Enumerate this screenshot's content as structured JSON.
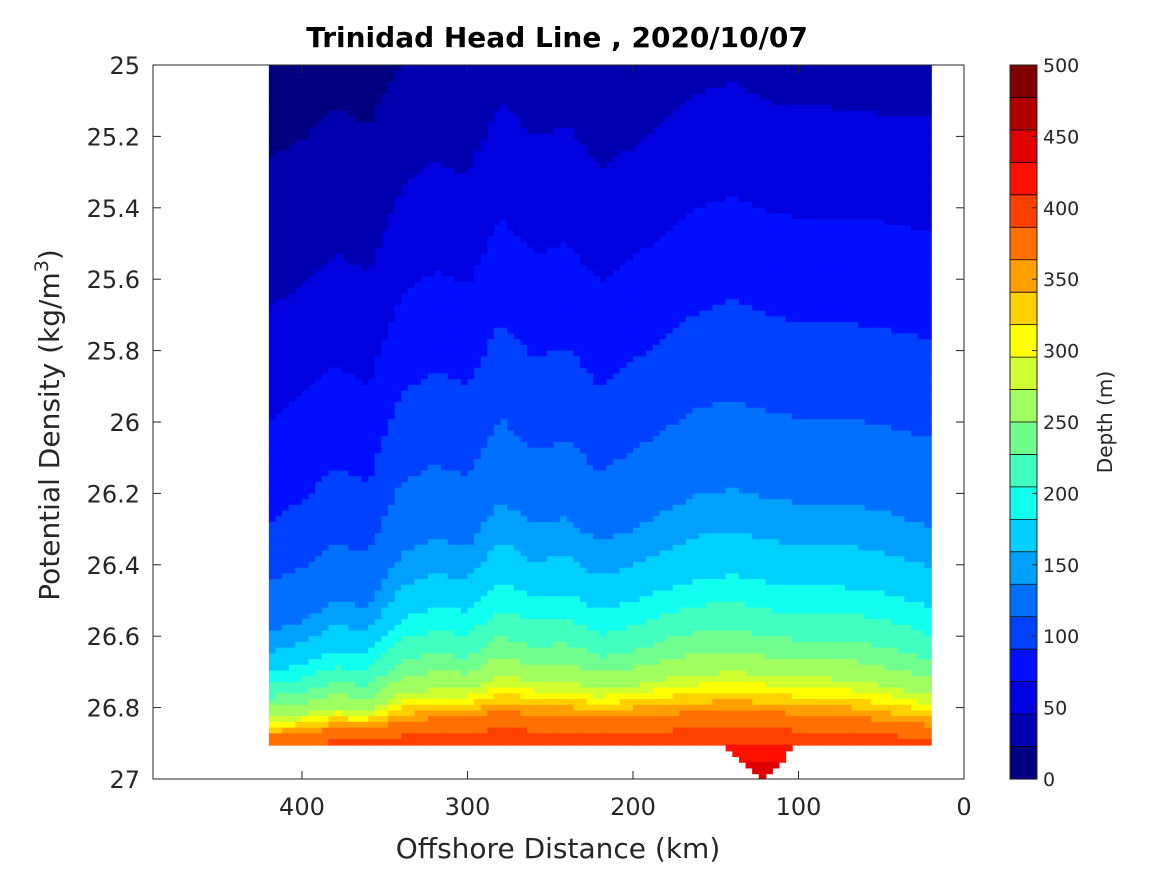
{
  "chart_data": {
    "type": "heatmap",
    "subtype": "filled-contour",
    "title": "Trinidad Head Line , 2020/10/07",
    "xlabel": "Offshore Distance (km)",
    "ylabel_main": "Potential Density (kg/m",
    "ylabel_sup": "3",
    "ylabel_close": ")",
    "colorbar_label": "Depth (m)",
    "xlim": [
      490,
      0
    ],
    "ylim": [
      27,
      25
    ],
    "x_reversed": true,
    "y_reversed": true,
    "x_ticks": [
      400,
      300,
      200,
      100,
      0
    ],
    "x_tick_labels": [
      "400",
      "300",
      "200",
      "100",
      "0"
    ],
    "y_ticks": [
      25,
      25.2,
      25.4,
      25.6,
      25.8,
      26,
      26.2,
      26.4,
      26.6,
      26.8,
      27
    ],
    "y_tick_labels": [
      "25",
      "25.2",
      "25.4",
      "25.6",
      "25.8",
      "26",
      "26.2",
      "26.4",
      "26.6",
      "26.8",
      "27"
    ],
    "colorbar_ticks": [
      0,
      50,
      100,
      150,
      200,
      250,
      300,
      350,
      400,
      450,
      500
    ],
    "colorbar_tick_labels": [
      "0",
      "50",
      "100",
      "150",
      "200",
      "250",
      "300",
      "350",
      "400",
      "450",
      "500"
    ],
    "contour_step": 25,
    "colormap": "jet",
    "level_colors": [
      "#000080",
      "#0000B0",
      "#0000E0",
      "#0010FF",
      "#0040FF",
      "#0070FF",
      "#00A0FF",
      "#00D0FF",
      "#10FFEF",
      "#40FFBF",
      "#70FF8F",
      "#A0FF60",
      "#D0FF30",
      "#FFFF00",
      "#FFD000",
      "#FFA000",
      "#FF7000",
      "#FF4000",
      "#FF1000",
      "#E00000",
      "#B00000",
      "#800000"
    ],
    "grid": false,
    "legend": "none",
    "contour_boundaries": {
      "x": [
        420,
        400,
        380,
        360,
        340,
        320,
        300,
        280,
        260,
        240,
        220,
        200,
        180,
        160,
        140,
        120,
        100,
        80,
        60,
        40,
        20
      ],
      "depth_25": [
        25.26,
        25.21,
        25.12,
        25.17,
        25.0,
        25.0,
        25.0,
        25.0,
        25.0,
        25.0,
        25.0,
        25.0,
        25.0,
        25.0,
        25.0,
        25.0,
        25.0,
        25.0,
        25.0,
        25.0,
        25.0
      ],
      "depth_50": [
        25.68,
        25.62,
        25.53,
        25.58,
        25.34,
        25.27,
        25.31,
        25.1,
        25.2,
        25.17,
        25.29,
        25.23,
        25.16,
        25.08,
        25.05,
        25.1,
        25.12,
        25.12,
        25.13,
        25.15,
        25.15
      ],
      "depth_75": [
        26.0,
        25.92,
        25.84,
        25.9,
        25.64,
        25.58,
        25.62,
        25.43,
        25.53,
        25.5,
        25.61,
        25.54,
        25.47,
        25.4,
        25.37,
        25.41,
        25.43,
        25.43,
        25.43,
        25.45,
        25.47
      ],
      "depth_100": [
        26.28,
        26.22,
        26.13,
        26.17,
        25.92,
        25.86,
        25.9,
        25.72,
        25.82,
        25.79,
        25.9,
        25.83,
        25.76,
        25.69,
        25.66,
        25.7,
        25.72,
        25.72,
        25.73,
        25.75,
        25.77
      ],
      "depth_125": [
        26.45,
        26.41,
        26.34,
        26.37,
        26.17,
        26.12,
        26.15,
        25.99,
        26.08,
        26.05,
        26.14,
        26.08,
        26.02,
        25.96,
        25.94,
        25.97,
        25.99,
        25.99,
        26.0,
        26.02,
        26.05
      ],
      "depth_150": [
        26.59,
        26.56,
        26.5,
        26.52,
        26.37,
        26.33,
        26.35,
        26.22,
        26.29,
        26.27,
        26.34,
        26.3,
        26.25,
        26.2,
        26.19,
        26.21,
        26.23,
        26.23,
        26.24,
        26.26,
        26.3
      ],
      "depth_200": [
        26.7,
        26.68,
        26.64,
        26.65,
        26.55,
        26.52,
        26.53,
        26.45,
        26.49,
        26.48,
        26.53,
        26.5,
        26.47,
        26.44,
        26.43,
        26.45,
        26.46,
        26.46,
        26.47,
        26.49,
        26.52
      ],
      "depth_250": [
        26.77,
        26.76,
        26.73,
        26.74,
        26.67,
        26.65,
        26.66,
        26.6,
        26.63,
        26.62,
        26.66,
        26.64,
        26.61,
        26.59,
        26.58,
        26.6,
        26.61,
        26.61,
        26.62,
        26.64,
        26.67
      ],
      "depth_300": [
        26.83,
        26.82,
        26.8,
        26.81,
        26.76,
        26.75,
        26.75,
        26.71,
        26.73,
        26.73,
        26.75,
        26.74,
        26.72,
        26.71,
        26.7,
        26.71,
        26.72,
        26.72,
        26.73,
        26.75,
        26.77
      ],
      "depth_400": [
        26.88,
        26.87,
        26.86,
        26.86,
        26.84,
        26.83,
        26.83,
        26.81,
        26.82,
        26.82,
        26.83,
        26.82,
        26.82,
        26.81,
        26.81,
        26.81,
        26.82,
        26.82,
        26.83,
        26.84,
        26.85
      ]
    },
    "data_extent": {
      "x_min": 20,
      "x_max": 420,
      "sigma_min": 25.0,
      "sigma_max_deep": 27.0,
      "sigma_max_shelf": 26.9
    }
  }
}
